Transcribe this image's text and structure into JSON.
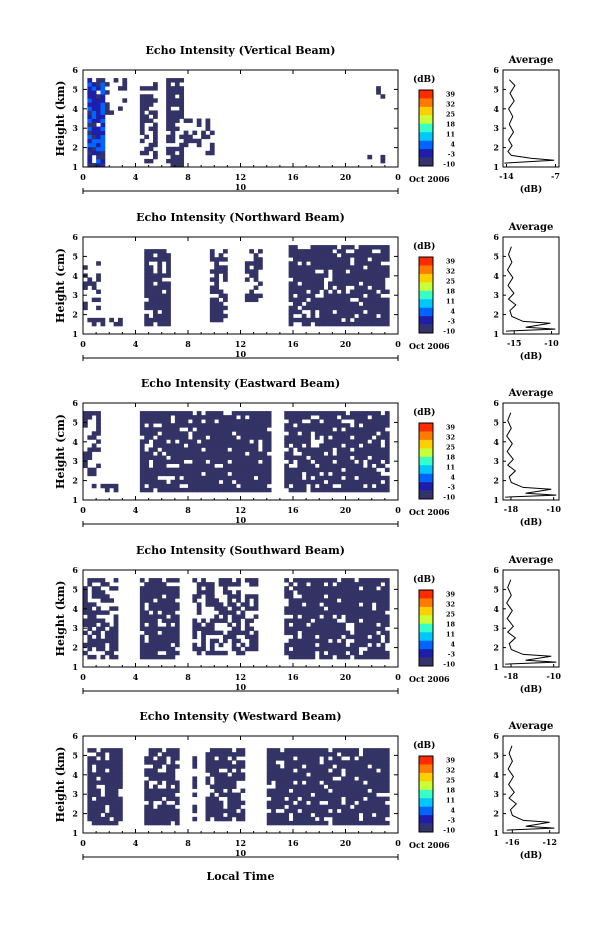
{
  "figure": {
    "date_label": "Oct 2006",
    "date_axis_day": "10",
    "bottom_xlabel": "Local Time",
    "colorbar_title": "(dB)",
    "colorbar_ticks": [
      "39",
      "32",
      "25",
      "18",
      "11",
      "4",
      "-3",
      "-10"
    ],
    "colorbar_colors": [
      "#ff2a00",
      "#ff7b00",
      "#ffcf00",
      "#c8ff37",
      "#37ffc8",
      "#00c8ff",
      "#0064ff",
      "#1e1eaa",
      "#33336b"
    ],
    "cell_color": "#333366",
    "avg_title": "Average",
    "avg_xlabel": "(dB)"
  },
  "chart_data": [
    {
      "type": "heatmap",
      "title": "Echo Intensity (Vertical Beam)",
      "ylabel": "Height (km)",
      "yticks": [
        "1",
        "2",
        "3",
        "4",
        "5",
        "6"
      ],
      "ylim": [
        1,
        6
      ],
      "xticks": [
        "0",
        "4",
        "8",
        "12",
        "16",
        "20",
        "0"
      ],
      "xlim": [
        0,
        24
      ],
      "avg": {
        "xticks": [
          "-14",
          "-7"
        ],
        "xlim": [
          -14.5,
          -6.5
        ],
        "profile": [
          [
            -14.3,
            1.2
          ],
          [
            -7.2,
            1.35
          ],
          [
            -10.5,
            1.45
          ],
          [
            -13.3,
            1.6
          ],
          [
            -13.8,
            1.8
          ],
          [
            -13.2,
            2.1
          ],
          [
            -13.7,
            2.4
          ],
          [
            -13.0,
            2.8
          ],
          [
            -13.6,
            3.2
          ],
          [
            -13.1,
            3.6
          ],
          [
            -13.7,
            4.0
          ],
          [
            -12.9,
            4.4
          ],
          [
            -13.5,
            4.8
          ],
          [
            -12.8,
            5.2
          ],
          [
            -13.6,
            5.5
          ]
        ]
      },
      "fill_intervals": [
        {
          "t0": 0.3,
          "t1": 1.8,
          "h0": 1.1,
          "h1": 5.5,
          "density": 0.95,
          "cmin": -10,
          "cmax": 4
        },
        {
          "t0": 1.8,
          "t1": 3.2,
          "h0": 3.4,
          "h1": 5.5,
          "density": 0.25
        },
        {
          "t0": 4.5,
          "t1": 5.8,
          "h0": 1.3,
          "h1": 5.4,
          "density": 0.55
        },
        {
          "t0": 6.5,
          "t1": 7.8,
          "h0": 1.1,
          "h1": 5.5,
          "density": 0.75
        },
        {
          "t0": 7.8,
          "t1": 10.0,
          "h0": 1.6,
          "h1": 3.5,
          "density": 0.4
        },
        {
          "t0": 22.3,
          "t1": 23.0,
          "h0": 4.5,
          "h1": 5.6,
          "density": 0.45
        },
        {
          "t0": 21.5,
          "t1": 23.2,
          "h0": 1.2,
          "h1": 2.2,
          "density": 0.15
        }
      ]
    },
    {
      "type": "heatmap",
      "title": "Echo Intensity (Northward Beam)",
      "ylabel": "Height (cm)",
      "yticks": [
        "1",
        "2",
        "3",
        "4",
        "5",
        "6"
      ],
      "ylim": [
        1,
        6
      ],
      "xticks": [
        "0",
        "4",
        "8",
        "12",
        "16",
        "20",
        "0"
      ],
      "xlim": [
        0,
        24
      ],
      "avg": {
        "xticks": [
          "-15",
          "-10"
        ],
        "xlim": [
          -16.5,
          -9
        ],
        "profile": "standard"
      },
      "fill_intervals": [
        {
          "t0": 0.0,
          "t1": 1.5,
          "h0": 2.0,
          "h1": 5.2,
          "density": 0.35
        },
        {
          "t0": 0.2,
          "t1": 3.0,
          "h0": 1.4,
          "h1": 1.9,
          "density": 0.6
        },
        {
          "t0": 4.8,
          "t1": 6.7,
          "h0": 1.4,
          "h1": 5.4,
          "density": 0.85
        },
        {
          "t0": 9.6,
          "t1": 11.0,
          "h0": 1.6,
          "h1": 5.4,
          "density": 0.7
        },
        {
          "t0": 12.2,
          "t1": 13.6,
          "h0": 2.6,
          "h1": 5.4,
          "density": 0.55
        },
        {
          "t0": 15.6,
          "t1": 23.2,
          "h0": 1.4,
          "h1": 5.5,
          "density": 0.82
        }
      ]
    },
    {
      "type": "heatmap",
      "title": "Echo Intensity (Eastward Beam)",
      "ylabel": "Height (cm)",
      "yticks": [
        "1",
        "2",
        "3",
        "4",
        "5",
        "6"
      ],
      "ylim": [
        1,
        6
      ],
      "xticks": [
        "0",
        "4",
        "8",
        "12",
        "16",
        "20",
        "0"
      ],
      "xlim": [
        0,
        24
      ],
      "avg": {
        "xticks": [
          "-18",
          "-10"
        ],
        "xlim": [
          -19.5,
          -9
        ],
        "profile": "standard"
      },
      "fill_intervals": [
        {
          "t0": 0.0,
          "t1": 1.3,
          "h0": 2.3,
          "h1": 5.5,
          "density": 0.6
        },
        {
          "t0": 0.6,
          "t1": 2.8,
          "h0": 1.5,
          "h1": 1.9,
          "density": 0.4
        },
        {
          "t0": 4.2,
          "t1": 8.3,
          "h0": 1.4,
          "h1": 5.5,
          "density": 0.8
        },
        {
          "t0": 8.4,
          "t1": 14.2,
          "h0": 1.4,
          "h1": 5.5,
          "density": 0.9
        },
        {
          "t0": 15.2,
          "t1": 23.3,
          "h0": 1.4,
          "h1": 5.5,
          "density": 0.82
        }
      ]
    },
    {
      "type": "heatmap",
      "title": "Echo Intensity (Southward Beam)",
      "ylabel": "Height (km)",
      "yticks": [
        "1",
        "2",
        "3",
        "4",
        "5",
        "6"
      ],
      "ylim": [
        1,
        6
      ],
      "xticks": [
        "0",
        "4",
        "8",
        "12",
        "16",
        "20",
        "0"
      ],
      "xlim": [
        0,
        24
      ],
      "avg": {
        "xticks": [
          "-18",
          "-10"
        ],
        "xlim": [
          -19.5,
          -9
        ],
        "profile": "standard"
      },
      "fill_intervals": [
        {
          "t0": 0.0,
          "t1": 2.8,
          "h0": 1.4,
          "h1": 5.5,
          "density": 0.7
        },
        {
          "t0": 4.5,
          "t1": 7.2,
          "h0": 1.4,
          "h1": 5.5,
          "density": 0.85
        },
        {
          "t0": 8.2,
          "t1": 13.5,
          "h0": 1.6,
          "h1": 5.5,
          "density": 0.55
        },
        {
          "t0": 15.5,
          "t1": 23.3,
          "h0": 1.4,
          "h1": 5.5,
          "density": 0.85
        }
      ]
    },
    {
      "type": "heatmap",
      "title": "Echo Intensity (Westward Beam)",
      "ylabel": "Height (km)",
      "yticks": [
        "1",
        "2",
        "3",
        "4",
        "5",
        "6"
      ],
      "ylim": [
        1,
        6
      ],
      "xticks": [
        "0",
        "4",
        "8",
        "12",
        "16",
        "20",
        "0"
      ],
      "xlim": [
        0,
        24
      ],
      "avg": {
        "xticks": [
          "-16",
          "-12"
        ],
        "xlim": [
          -17,
          -11
        ],
        "profile": "standard"
      },
      "fill_intervals": [
        {
          "t0": 0.3,
          "t1": 3.0,
          "h0": 1.4,
          "h1": 5.4,
          "density": 0.82
        },
        {
          "t0": 4.6,
          "t1": 7.2,
          "h0": 1.4,
          "h1": 5.4,
          "density": 0.75
        },
        {
          "t0": 8.3,
          "t1": 8.8,
          "h0": 1.6,
          "h1": 5.0,
          "density": 0.7
        },
        {
          "t0": 9.3,
          "t1": 12.5,
          "h0": 1.6,
          "h1": 5.4,
          "density": 0.7
        },
        {
          "t0": 14.0,
          "t1": 23.4,
          "h0": 1.5,
          "h1": 5.4,
          "density": 0.85
        }
      ]
    }
  ]
}
